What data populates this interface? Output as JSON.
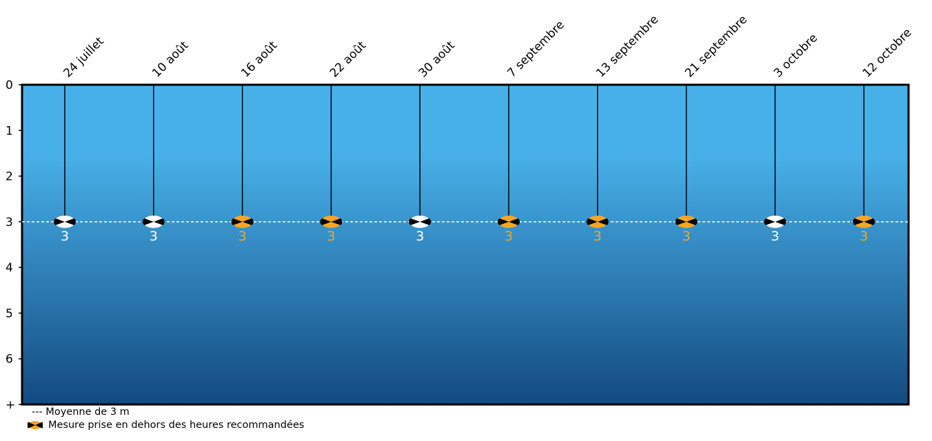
{
  "chart_data": {
    "type": "scatter",
    "title": "",
    "xlabel": "",
    "ylabel": "",
    "categories": [
      "24 juillet",
      "10 août",
      "16 août",
      "22 août",
      "30 août",
      "7 septembre",
      "13 septembre",
      "21 septembre",
      "3 octobre",
      "12 octobre"
    ],
    "values": [
      3,
      3,
      3,
      3,
      3,
      3,
      3,
      3,
      3,
      3
    ],
    "labels": [
      "3",
      "3",
      "3",
      "3",
      "3",
      "3",
      "3",
      "3",
      "3",
      "3"
    ],
    "outside_recommended_hours": [
      false,
      false,
      true,
      true,
      false,
      true,
      true,
      true,
      false,
      true
    ],
    "y_axis": {
      "ticks": [
        "0",
        "1",
        "2",
        "3",
        "4",
        "5",
        "6",
        "+"
      ],
      "range": [
        0,
        7
      ],
      "inverted": true
    },
    "mean": {
      "value": 3,
      "label": "--- Moyenne de 3 m"
    },
    "legend_marker_label": "Mesure prise en dehors des heures recommandées",
    "colors": {
      "water_top": "#48b0e8",
      "water_bottom": "#124a80",
      "outside_hours": "#f5a623",
      "normal": "#ffffff",
      "disk_quarters": "#000000"
    }
  }
}
